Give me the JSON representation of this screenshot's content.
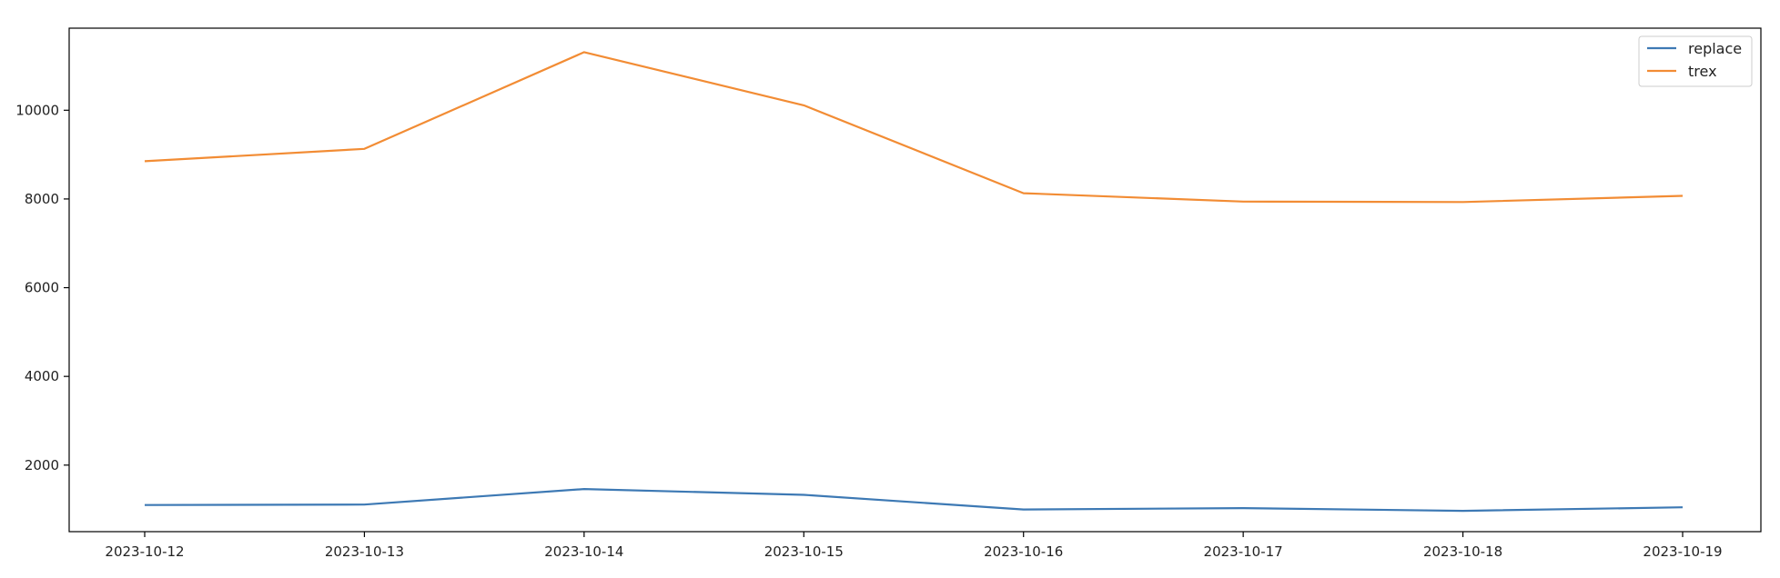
{
  "chart_data": {
    "type": "line",
    "title": "",
    "xlabel": "",
    "ylabel": "",
    "categories": [
      "2023-10-12",
      "2023-10-13",
      "2023-10-14",
      "2023-10-15",
      "2023-10-16",
      "2023-10-17",
      "2023-10-18",
      "2023-10-19"
    ],
    "series": [
      {
        "name": "replace",
        "color": "#3d79b4",
        "values": [
          1100,
          1110,
          1460,
          1330,
          1000,
          1030,
          970,
          1050
        ]
      },
      {
        "name": "trex",
        "color": "#f28c34",
        "values": [
          8850,
          9130,
          11310,
          10110,
          8130,
          7940,
          7930,
          8070
        ]
      }
    ],
    "ylim": [
      500,
      11850
    ],
    "yticks": [
      2000,
      4000,
      6000,
      8000,
      10000
    ],
    "grid": false,
    "legend": "top-right"
  }
}
